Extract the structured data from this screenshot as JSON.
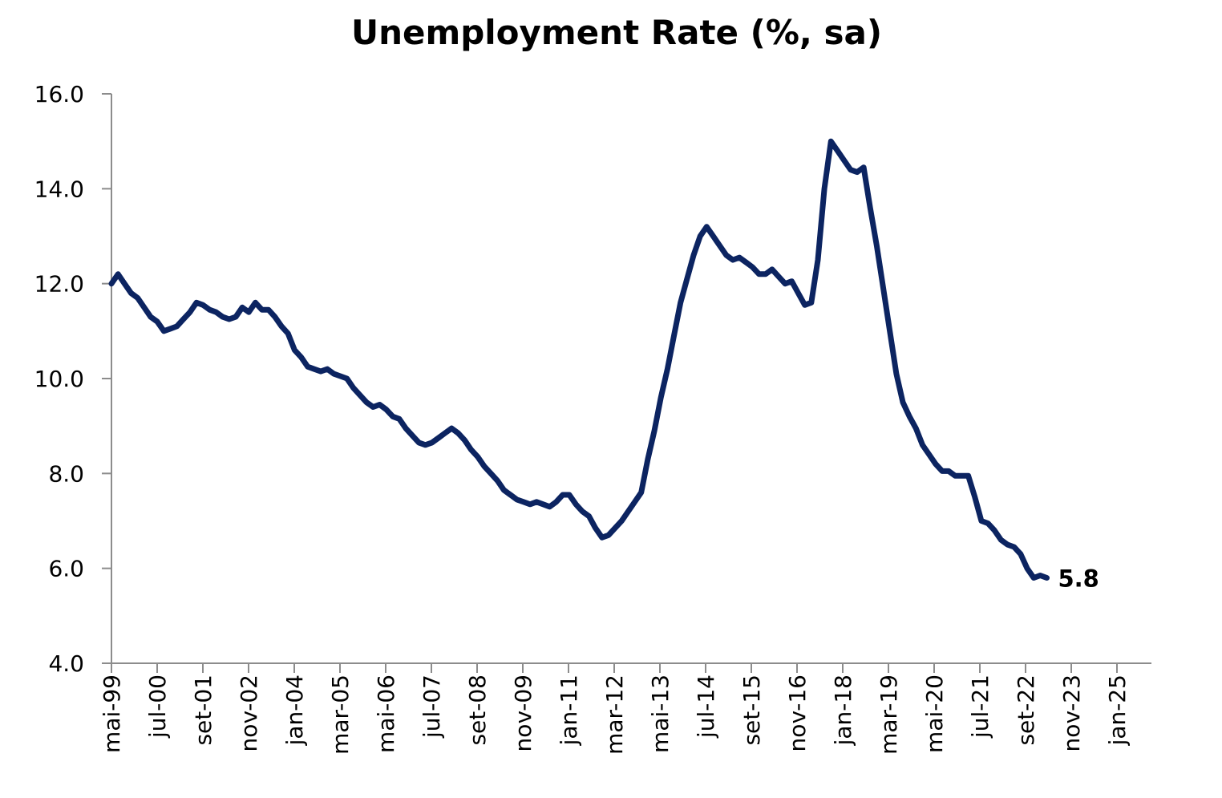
{
  "chart_data": {
    "type": "line",
    "title": "Unemployment Rate (%, sa)",
    "xlabel": "",
    "ylabel": "",
    "ylim": [
      4.0,
      16.0
    ],
    "y_ticks": [
      "4.0",
      "6.0",
      "8.0",
      "10.0",
      "12.0",
      "14.0",
      "16.0"
    ],
    "x_tick_labels": [
      "mai-99",
      "jul-00",
      "set-01",
      "nov-02",
      "jan-04",
      "mar-05",
      "mai-06",
      "jul-07",
      "set-08",
      "nov-09",
      "jan-11",
      "mar-12",
      "mai-13",
      "jul-14",
      "set-15",
      "nov-16",
      "jan-18",
      "mar-19",
      "mai-20",
      "jul-21",
      "set-22",
      "nov-23",
      "jan-25"
    ],
    "x_range": [
      "1999-05",
      "2025-11"
    ],
    "grid": false,
    "line_color": "#0c2461",
    "last_value_label": "5.8",
    "series": [
      {
        "values": [
          [
            "1999-05",
            12.0
          ],
          [
            "1999-07",
            12.2
          ],
          [
            "1999-09",
            12.0
          ],
          [
            "1999-11",
            11.8
          ],
          [
            "2000-01",
            11.7
          ],
          [
            "2000-03",
            11.5
          ],
          [
            "2000-05",
            11.3
          ],
          [
            "2000-07",
            11.2
          ],
          [
            "2000-09",
            11.0
          ],
          [
            "2000-11",
            11.05
          ],
          [
            "2001-01",
            11.1
          ],
          [
            "2001-03",
            11.25
          ],
          [
            "2001-05",
            11.4
          ],
          [
            "2001-07",
            11.6
          ],
          [
            "2001-09",
            11.55
          ],
          [
            "2001-11",
            11.45
          ],
          [
            "2002-01",
            11.4
          ],
          [
            "2002-03",
            11.3
          ],
          [
            "2002-05",
            11.25
          ],
          [
            "2002-07",
            11.3
          ],
          [
            "2002-09",
            11.5
          ],
          [
            "2002-11",
            11.4
          ],
          [
            "2003-01",
            11.6
          ],
          [
            "2003-03",
            11.45
          ],
          [
            "2003-05",
            11.45
          ],
          [
            "2003-07",
            11.3
          ],
          [
            "2003-09",
            11.1
          ],
          [
            "2003-11",
            10.95
          ],
          [
            "2004-01",
            10.6
          ],
          [
            "2004-03",
            10.45
          ],
          [
            "2004-05",
            10.25
          ],
          [
            "2004-07",
            10.2
          ],
          [
            "2004-09",
            10.15
          ],
          [
            "2004-11",
            10.2
          ],
          [
            "2005-01",
            10.1
          ],
          [
            "2005-03",
            10.05
          ],
          [
            "2005-05",
            10.0
          ],
          [
            "2005-07",
            9.8
          ],
          [
            "2005-09",
            9.65
          ],
          [
            "2005-11",
            9.5
          ],
          [
            "2006-01",
            9.4
          ],
          [
            "2006-03",
            9.45
          ],
          [
            "2006-05",
            9.35
          ],
          [
            "2006-07",
            9.2
          ],
          [
            "2006-09",
            9.15
          ],
          [
            "2006-11",
            8.95
          ],
          [
            "2007-01",
            8.8
          ],
          [
            "2007-03",
            8.65
          ],
          [
            "2007-05",
            8.6
          ],
          [
            "2007-07",
            8.65
          ],
          [
            "2007-09",
            8.75
          ],
          [
            "2007-11",
            8.85
          ],
          [
            "2008-01",
            8.95
          ],
          [
            "2008-03",
            8.85
          ],
          [
            "2008-05",
            8.7
          ],
          [
            "2008-07",
            8.5
          ],
          [
            "2008-09",
            8.35
          ],
          [
            "2008-11",
            8.15
          ],
          [
            "2009-01",
            8.0
          ],
          [
            "2009-03",
            7.85
          ],
          [
            "2009-05",
            7.65
          ],
          [
            "2009-07",
            7.55
          ],
          [
            "2009-09",
            7.45
          ],
          [
            "2009-11",
            7.4
          ],
          [
            "2010-01",
            7.35
          ],
          [
            "2010-03",
            7.4
          ],
          [
            "2010-05",
            7.35
          ],
          [
            "2010-07",
            7.3
          ],
          [
            "2010-09",
            7.4
          ],
          [
            "2010-11",
            7.55
          ],
          [
            "2011-01",
            7.55
          ],
          [
            "2011-03",
            7.35
          ],
          [
            "2011-05",
            7.2
          ],
          [
            "2011-07",
            7.1
          ],
          [
            "2011-09",
            6.85
          ],
          [
            "2011-11",
            6.65
          ],
          [
            "2012-01",
            6.7
          ],
          [
            "2012-03",
            6.85
          ],
          [
            "2012-05",
            7.0
          ],
          [
            "2012-07",
            7.2
          ],
          [
            "2012-09",
            7.4
          ],
          [
            "2012-11",
            7.6
          ],
          [
            "2013-01",
            8.3
          ],
          [
            "2013-03",
            8.9
          ],
          [
            "2013-05",
            9.6
          ],
          [
            "2013-07",
            10.2
          ],
          [
            "2013-09",
            10.9
          ],
          [
            "2013-11",
            11.6
          ],
          [
            "2014-01",
            12.1
          ],
          [
            "2014-03",
            12.6
          ],
          [
            "2014-05",
            13.0
          ],
          [
            "2014-07",
            13.2
          ],
          [
            "2014-09",
            13.0
          ],
          [
            "2014-11",
            12.8
          ],
          [
            "2015-01",
            12.6
          ],
          [
            "2015-03",
            12.5
          ],
          [
            "2015-05",
            12.55
          ],
          [
            "2015-07",
            12.45
          ],
          [
            "2015-09",
            12.35
          ],
          [
            "2015-11",
            12.2
          ],
          [
            "2016-01",
            12.2
          ],
          [
            "2016-03",
            12.3
          ],
          [
            "2016-05",
            12.15
          ],
          [
            "2016-07",
            12.0
          ],
          [
            "2016-09",
            12.05
          ],
          [
            "2016-11",
            11.8
          ],
          [
            "2017-01",
            11.55
          ],
          [
            "2017-03",
            11.6
          ],
          [
            "2017-05",
            12.5
          ],
          [
            "2017-07",
            14.0
          ],
          [
            "2017-09",
            15.0
          ],
          [
            "2017-11",
            14.8
          ],
          [
            "2018-01",
            14.6
          ],
          [
            "2018-03",
            14.4
          ],
          [
            "2018-05",
            14.35
          ],
          [
            "2018-07",
            14.45
          ],
          [
            "2018-09",
            13.6
          ],
          [
            "2018-11",
            12.8
          ],
          [
            "2019-01",
            11.9
          ],
          [
            "2019-03",
            11.0
          ],
          [
            "2019-05",
            10.1
          ],
          [
            "2019-07",
            9.5
          ],
          [
            "2019-09",
            9.2
          ],
          [
            "2019-11",
            8.95
          ],
          [
            "2020-01",
            8.6
          ],
          [
            "2020-03",
            8.4
          ],
          [
            "2020-05",
            8.2
          ],
          [
            "2020-07",
            8.05
          ],
          [
            "2020-09",
            8.05
          ],
          [
            "2020-11",
            7.95
          ],
          [
            "2021-01",
            7.95
          ],
          [
            "2021-03",
            7.95
          ],
          [
            "2021-05",
            7.5
          ],
          [
            "2021-07",
            7.0
          ],
          [
            "2021-09",
            6.95
          ],
          [
            "2021-11",
            6.8
          ],
          [
            "2022-01",
            6.6
          ],
          [
            "2022-03",
            6.5
          ],
          [
            "2022-05",
            6.45
          ],
          [
            "2022-07",
            6.3
          ],
          [
            "2022-09",
            6.0
          ],
          [
            "2022-11",
            5.8
          ],
          [
            "2023-01",
            5.85
          ],
          [
            "2023-03",
            5.8
          ]
        ]
      }
    ]
  }
}
